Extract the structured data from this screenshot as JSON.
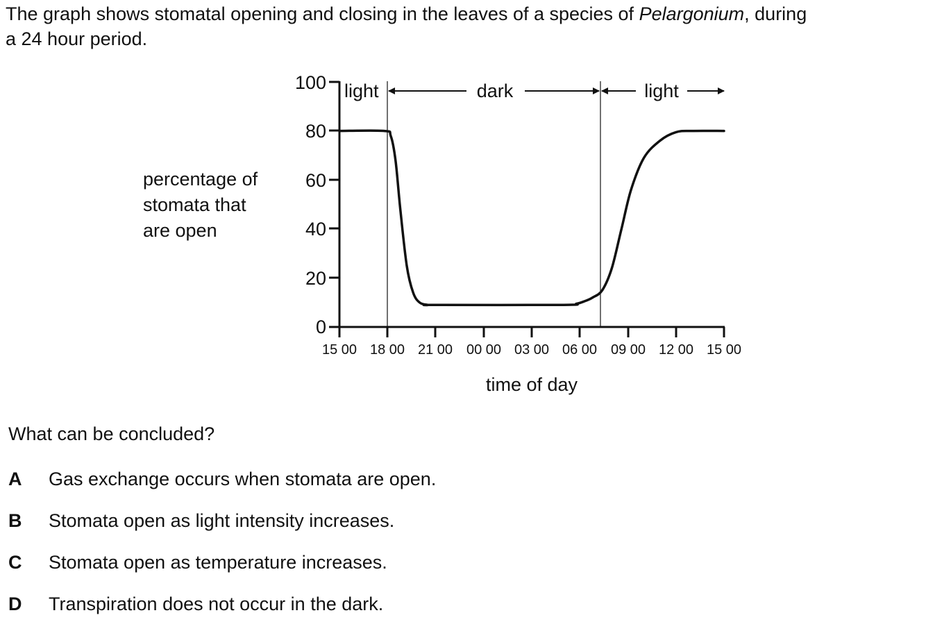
{
  "intro": {
    "part1": "The graph shows stomatal opening and closing in the leaves of a species of ",
    "species": "Pelargonium",
    "part2": ", during",
    "part3": "a 24 hour period."
  },
  "chart_data": {
    "type": "line",
    "ylabel": [
      "percentage of",
      "stomata that",
      "are open"
    ],
    "xlabel": "time of day",
    "ylim": [
      0,
      100
    ],
    "yticks": [
      "0",
      "20",
      "40",
      "60",
      "80",
      "100"
    ],
    "xticks": [
      "15 00",
      "18 00",
      "21 00",
      "00 00",
      "03 00",
      "06 00",
      "09 00",
      "12 00",
      "15 00"
    ],
    "period_labels": [
      "light",
      "dark",
      "light"
    ],
    "period_boundaries_hours_from_1500": [
      3,
      16.4
    ],
    "series": [
      {
        "x_hours_from_1500": [
          0,
          2.8,
          3.2,
          3.5,
          3.8,
          4.2,
          4.6,
          5,
          5.5,
          6,
          14,
          14.8,
          15.3,
          15.8,
          16.4,
          17,
          17.6,
          18.2,
          19,
          20,
          21,
          22,
          24
        ],
        "values": [
          80,
          80,
          78,
          68,
          48,
          25,
          14,
          10,
          9,
          9,
          9,
          9.5,
          10.5,
          12,
          15,
          24,
          40,
          56,
          69,
          76,
          79.5,
          80,
          80
        ]
      }
    ]
  },
  "question": "What can be concluded?",
  "options": [
    {
      "letter": "A",
      "text": "Gas exchange occurs when stomata are open."
    },
    {
      "letter": "B",
      "text": "Stomata open as light intensity increases."
    },
    {
      "letter": "C",
      "text": "Stomata open as temperature increases."
    },
    {
      "letter": "D",
      "text": "Transpiration does not occur in the dark."
    }
  ]
}
